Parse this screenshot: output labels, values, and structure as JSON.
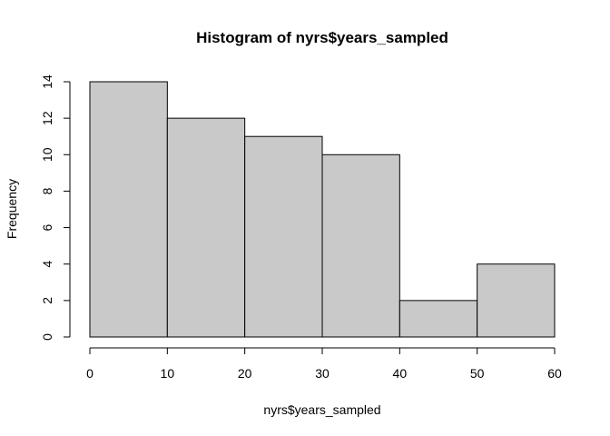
{
  "chart_data": {
    "type": "bar",
    "subtype": "histogram",
    "title": "Histogram of nyrs$years_sampled",
    "xlabel": "nyrs$years_sampled",
    "ylabel": "Frequency",
    "bins": [
      {
        "start": 0,
        "end": 10,
        "count": 14
      },
      {
        "start": 10,
        "end": 20,
        "count": 12
      },
      {
        "start": 20,
        "end": 30,
        "count": 11
      },
      {
        "start": 30,
        "end": 40,
        "count": 10
      },
      {
        "start": 40,
        "end": 50,
        "count": 2
      },
      {
        "start": 50,
        "end": 60,
        "count": 4
      }
    ],
    "xlim": [
      0,
      60
    ],
    "ylim": [
      0,
      14
    ],
    "x_ticks": [
      0,
      10,
      20,
      30,
      40,
      50,
      60
    ],
    "y_ticks": [
      0,
      2,
      4,
      6,
      8,
      10,
      12,
      14
    ],
    "grid": false,
    "bar_fill": "#c9c9c9",
    "bar_stroke": "#000000"
  }
}
